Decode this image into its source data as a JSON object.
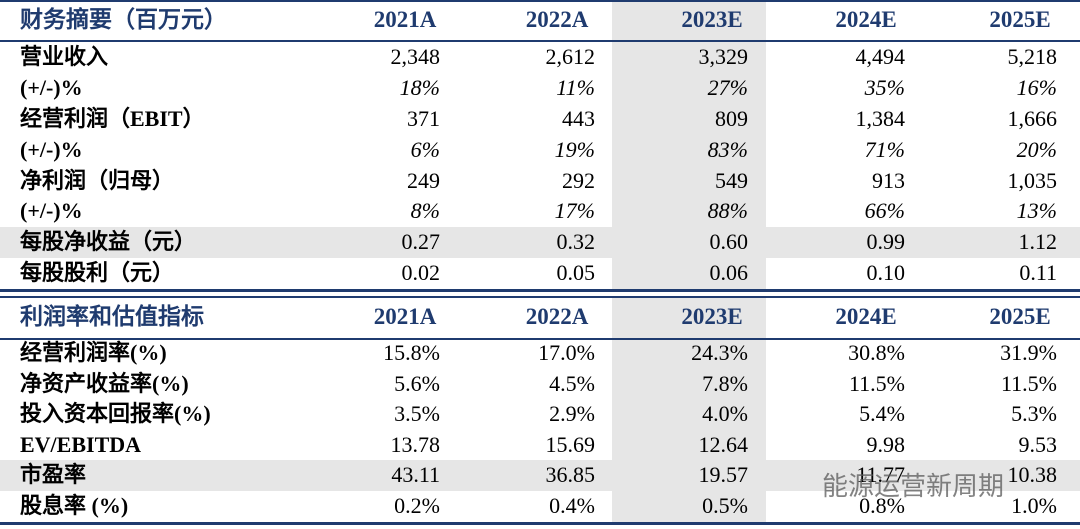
{
  "tables": [
    {
      "header": [
        "财务摘要（百万元）",
        "2021A",
        "2022A",
        "2023E",
        "2024E",
        "2025E"
      ],
      "rows": [
        {
          "label": "营业收入",
          "cells": [
            "2,348",
            "2,612",
            "3,329",
            "4,494",
            "5,218"
          ]
        },
        {
          "label": "(+/-)%",
          "cells": [
            "18%",
            "11%",
            "27%",
            "35%",
            "16%"
          ],
          "style": "italic"
        },
        {
          "label": "经营利润（EBIT）",
          "cells": [
            "371",
            "443",
            "809",
            "1,384",
            "1,666"
          ]
        },
        {
          "label": "(+/-)%",
          "cells": [
            "6%",
            "19%",
            "83%",
            "71%",
            "20%"
          ],
          "style": "italic"
        },
        {
          "label": "净利润（归母）",
          "cells": [
            "249",
            "292",
            "549",
            "913",
            "1,035"
          ]
        },
        {
          "label": "(+/-)%",
          "cells": [
            "8%",
            "17%",
            "88%",
            "66%",
            "13%"
          ],
          "style": "italic"
        },
        {
          "label": "每股净收益（元）",
          "cells": [
            "0.27",
            "0.32",
            "0.60",
            "0.99",
            "1.12"
          ],
          "shaded": true
        },
        {
          "label": "每股股利（元）",
          "cells": [
            "0.02",
            "0.05",
            "0.06",
            "0.10",
            "0.11"
          ]
        }
      ]
    },
    {
      "header": [
        "利润率和估值指标",
        "2021A",
        "2022A",
        "2023E",
        "2024E",
        "2025E"
      ],
      "rows": [
        {
          "label": "经营利润率(%)",
          "cells": [
            "15.8%",
            "17.0%",
            "24.3%",
            "30.8%",
            "31.9%"
          ]
        },
        {
          "label": "净资产收益率(%)",
          "cells": [
            "5.6%",
            "4.5%",
            "7.8%",
            "11.5%",
            "11.5%"
          ]
        },
        {
          "label": "投入资本回报率(%)",
          "cells": [
            "3.5%",
            "2.9%",
            "4.0%",
            "5.4%",
            "5.3%"
          ]
        },
        {
          "label": "EV/EBITDA",
          "cells": [
            "13.78",
            "15.69",
            "12.64",
            "9.98",
            "9.53"
          ]
        },
        {
          "label": "市盈率",
          "cells": [
            "43.11",
            "36.85",
            "19.57",
            "11.77",
            "10.38"
          ],
          "shaded": true
        },
        {
          "label": "股息率 (%)",
          "cells": [
            "0.2%",
            "0.4%",
            "0.5%",
            "0.8%",
            "1.0%"
          ]
        }
      ]
    }
  ],
  "watermark": "能源运营新周期"
}
